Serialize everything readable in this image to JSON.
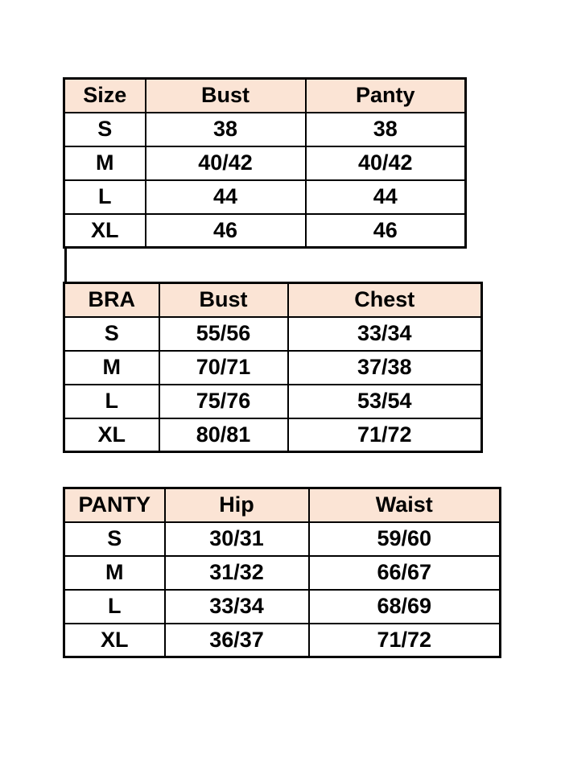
{
  "document": {
    "background_color": "#ffffff",
    "text_color": "#000000",
    "border_color": "#000000",
    "header_fill_color": "#FBE4D5"
  },
  "chart_data": [
    {
      "type": "table",
      "title": "",
      "headers": [
        "Size",
        "Bust",
        "Panty"
      ],
      "rows": [
        [
          "S",
          "38",
          "38"
        ],
        [
          "M",
          "40/42",
          "40/42"
        ],
        [
          "L",
          "44",
          "44"
        ],
        [
          "XL",
          "46",
          "46"
        ]
      ]
    },
    {
      "type": "table",
      "title": "",
      "headers": [
        "BRA",
        "Bust",
        "Chest"
      ],
      "rows": [
        [
          "S",
          "55/56",
          "33/34"
        ],
        [
          "M",
          "70/71",
          "37/38"
        ],
        [
          "L",
          "75/76",
          "53/54"
        ],
        [
          "XL",
          "80/81",
          "71/72"
        ]
      ]
    },
    {
      "type": "table",
      "title": "",
      "headers": [
        "PANTY",
        "Hip",
        "Waist"
      ],
      "rows": [
        [
          "S",
          "30/31",
          "59/60"
        ],
        [
          "M",
          "31/32",
          "66/67"
        ],
        [
          "L",
          "33/34",
          "68/69"
        ],
        [
          "XL",
          "36/37",
          "71/72"
        ]
      ]
    }
  ]
}
